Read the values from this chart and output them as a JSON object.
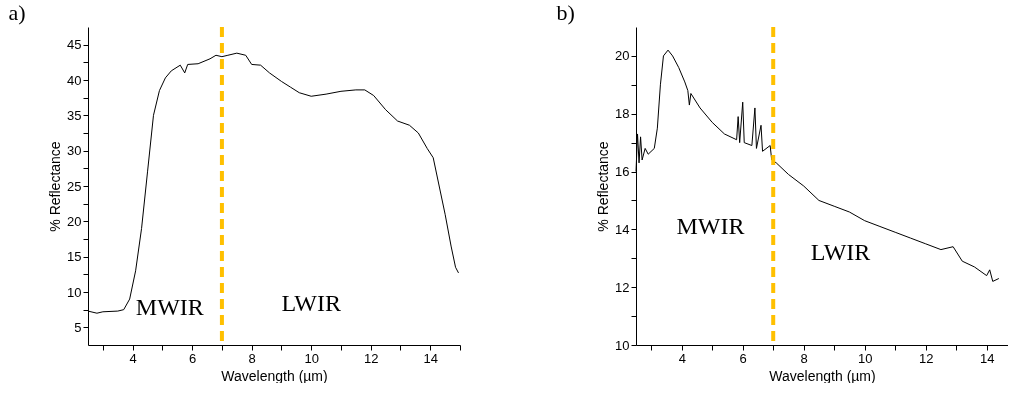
{
  "chart_data": [
    {
      "type": "line",
      "title": "a)",
      "xlabel": "Wavelength (µm)",
      "ylabel": "% Reflectance",
      "xlim": [
        2.5,
        15
      ],
      "ylim": [
        2.5,
        47.5
      ],
      "xticks": [
        {
          "value": 3,
          "label": null
        },
        4,
        {
          "value": 5,
          "label": null
        },
        6,
        {
          "value": 7,
          "label": null
        },
        8,
        {
          "value": 9,
          "label": null
        },
        10,
        {
          "value": 11,
          "label": null
        },
        12,
        {
          "value": 13,
          "label": null
        },
        14,
        {
          "value": 15,
          "label": null
        }
      ],
      "yticks": [
        5,
        {
          "value": 7.5,
          "label": null
        },
        10,
        {
          "value": 12.5,
          "label": null
        },
        15,
        {
          "value": 17.5,
          "label": null
        },
        20,
        {
          "value": 22.5,
          "label": null
        },
        25,
        {
          "value": 27.5,
          "label": null
        },
        30,
        {
          "value": 32.5,
          "label": null
        },
        35,
        {
          "value": 37.5,
          "label": null
        },
        40,
        {
          "value": 42.5,
          "label": null
        },
        45
      ],
      "grid": false,
      "line_style": "solid",
      "series": [
        {
          "color": "#000000",
          "x": [
            2.5,
            2.8,
            3.0,
            3.5,
            3.7,
            3.9,
            4.1,
            4.3,
            4.5,
            4.7,
            4.9,
            5.1,
            5.3,
            5.6,
            5.75,
            5.85,
            6.2,
            6.6,
            6.8,
            7.0,
            7.2,
            7.5,
            7.8,
            8.0,
            8.3,
            8.6,
            9.0,
            9.3,
            9.6,
            10.0,
            10.5,
            11.0,
            11.5,
            11.8,
            12.1,
            12.5,
            12.9,
            13.3,
            13.6,
            13.9,
            14.1,
            14.3,
            14.5,
            14.7,
            14.85,
            14.95
          ],
          "values": [
            7.3,
            7.0,
            7.2,
            7.3,
            7.5,
            9,
            13,
            19,
            27,
            35,
            38.5,
            40.3,
            41.3,
            42.1,
            41.0,
            42.2,
            42.3,
            43.0,
            43.5,
            43.3,
            43.5,
            43.8,
            43.5,
            42.2,
            42.1,
            41.0,
            39.8,
            39.0,
            38.2,
            37.7,
            38.0,
            38.4,
            38.6,
            38.6,
            37.8,
            35.8,
            34.2,
            33.6,
            32.5,
            30.3,
            29,
            25,
            21,
            16.5,
            13.5,
            12.7
          ]
        }
      ],
      "ref_lines": [
        {
          "axis": "x",
          "value": 7,
          "label": null,
          "color": "#ffc000",
          "line_style": "dashed"
        }
      ],
      "annotations": [
        "MWIR",
        "LWIR"
      ]
    },
    {
      "type": "line",
      "title": "b)",
      "xlabel": "Wavelength (µm)",
      "ylabel": "% Reflectance",
      "xlim": [
        2.5,
        14.7
      ],
      "ylim": [
        10,
        21
      ],
      "xticks": [
        {
          "value": 3,
          "label": null
        },
        4,
        {
          "value": 5,
          "label": null
        },
        6,
        {
          "value": 7,
          "label": null
        },
        8,
        {
          "value": 9,
          "label": null
        },
        10,
        {
          "value": 11,
          "label": null
        },
        12,
        {
          "value": 13,
          "label": null
        },
        14
      ],
      "yticks": [
        10,
        {
          "value": 11,
          "label": null
        },
        12,
        {
          "value": 13,
          "label": null
        },
        14,
        {
          "value": 15,
          "label": null
        },
        16,
        {
          "value": 17,
          "label": null
        },
        18,
        {
          "value": 19,
          "label": null
        },
        20
      ],
      "grid": false,
      "line_style": "solid",
      "series": [
        {
          "color": "#000000",
          "x": [
            2.5,
            2.55,
            2.6,
            2.65,
            2.7,
            2.8,
            2.9,
            3.1,
            3.2,
            3.3,
            3.4,
            3.55,
            3.7,
            3.9,
            4.1,
            4.2,
            4.25,
            4.3,
            4.6,
            5.0,
            5.4,
            5.8,
            5.85,
            5.9,
            6.0,
            6.05,
            6.3,
            6.4,
            6.45,
            6.6,
            6.65,
            6.9,
            6.95,
            7.1,
            7.5,
            8.0,
            8.5,
            9.0,
            9.5,
            10.0,
            10.5,
            11.0,
            11.5,
            12.0,
            12.5,
            12.9,
            13.2,
            13.6,
            14.0,
            14.1,
            14.2,
            14.4
          ],
          "values": [
            16.0,
            17.3,
            16.3,
            17.2,
            16.4,
            16.8,
            16.6,
            16.8,
            17.5,
            19.0,
            20.0,
            20.2,
            20.0,
            19.6,
            19.1,
            18.8,
            18.3,
            18.7,
            18.2,
            17.7,
            17.3,
            17.1,
            17.9,
            17.0,
            18.4,
            17.0,
            16.9,
            18.2,
            16.8,
            17.6,
            16.7,
            16.9,
            16.4,
            16.3,
            15.9,
            15.5,
            15.0,
            14.8,
            14.6,
            14.3,
            14.1,
            13.9,
            13.7,
            13.5,
            13.3,
            13.4,
            12.9,
            12.7,
            12.4,
            12.6,
            12.2,
            12.3
          ]
        }
      ],
      "ref_lines": [
        {
          "axis": "x",
          "value": 7,
          "label": null,
          "color": "#ffc000",
          "line_style": "dashed"
        }
      ],
      "annotations": [
        "MWIR",
        "LWIR"
      ]
    }
  ]
}
